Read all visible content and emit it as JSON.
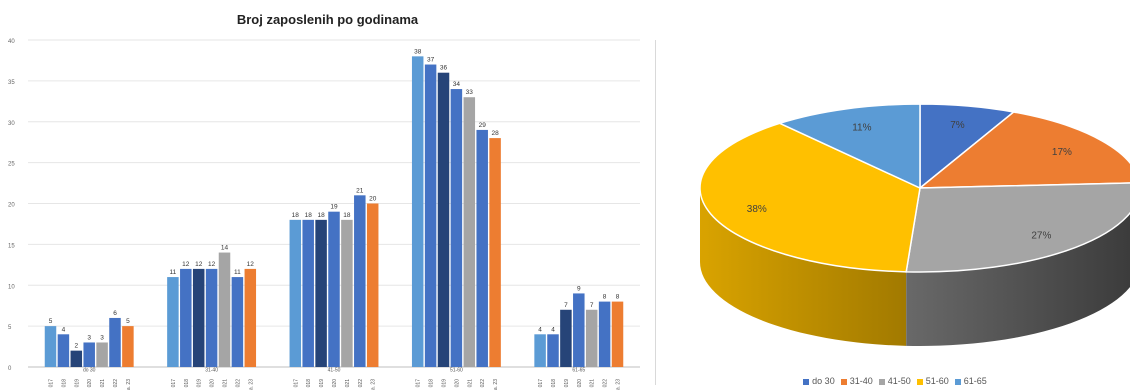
{
  "chart_data": [
    {
      "type": "bar",
      "title": "Broj zaposlenih po godinama",
      "categories": [
        "do 30",
        "31-40",
        "41-50",
        "51-60",
        "61-65"
      ],
      "series": [
        {
          "label": "2017",
          "color": "#5B9BD5",
          "values": [
            5,
            11,
            18,
            38,
            4
          ]
        },
        {
          "label": "2018",
          "color": "#4472C4",
          "values": [
            4,
            12,
            18,
            37,
            4
          ]
        },
        {
          "label": "2019",
          "color": "#264478",
          "values": [
            2,
            12,
            18,
            36,
            7
          ]
        },
        {
          "label": "2020",
          "color": "#4472C4",
          "values": [
            3,
            12,
            19,
            34,
            9
          ]
        },
        {
          "label": "2021",
          "color": "#A5A5A5",
          "values": [
            3,
            14,
            18,
            33,
            7
          ]
        },
        {
          "label": "2022",
          "color": "#4472C4",
          "values": [
            6,
            11,
            21,
            29,
            8
          ]
        },
        {
          "label": "2023",
          "color": "#ED7D31",
          "values": [
            5,
            12,
            20,
            28,
            8
          ]
        }
      ],
      "x_tick_labels": [
        "017",
        "018",
        "019",
        "020",
        "021",
        "022",
        "a. 23"
      ],
      "ylim": [
        0,
        40
      ],
      "yticks": [
        0,
        5,
        10,
        15,
        20,
        25,
        30,
        35,
        40
      ],
      "grid": true
    },
    {
      "type": "pie",
      "categories": [
        "do 30",
        "31-40",
        "41-50",
        "51-60",
        "61-65"
      ],
      "values": [
        7,
        17,
        27,
        38,
        11
      ],
      "labels": [
        "7%",
        "17%",
        "27%",
        "38%",
        "11%"
      ],
      "colors": [
        "#4472C4",
        "#ED7D31",
        "#A5A5A5",
        "#FFC000",
        "#5B9BD5"
      ],
      "legend_position": "bottom",
      "style": "3d"
    }
  ]
}
